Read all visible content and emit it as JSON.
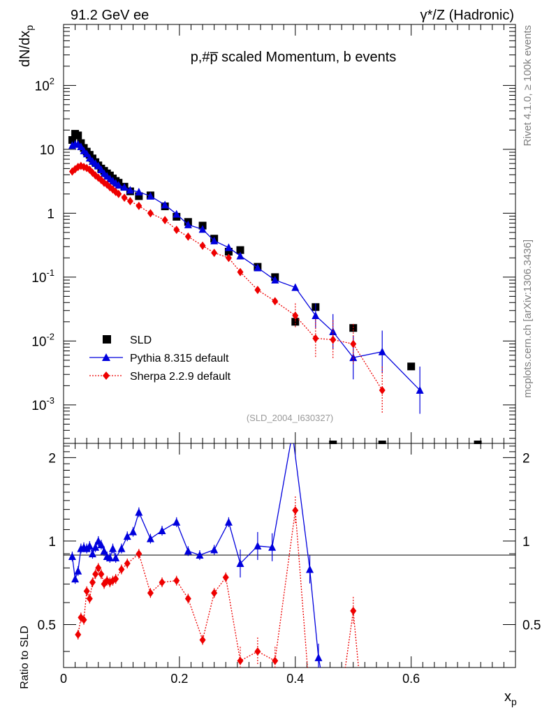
{
  "header": {
    "left": "91.2 GeV ee",
    "right": "γ*/Z (Hadronic)"
  },
  "side": {
    "rivet": "Rivet 4.1.0, ≥ 100k events",
    "mcplots": "mcplots.cern.ch [arXiv:1306.3436]"
  },
  "chart_data": {
    "type": "scatter",
    "title": "p,#p̅ scaled Momentum, b events",
    "watermark": "(SLD_2004_I630327)",
    "xlabel": "x_p",
    "ylabel": "dN/dx_p",
    "ratio_ylabel": "Ratio to SLD",
    "xlim": [
      0,
      0.78
    ],
    "ylim": [
      0.00025,
      900
    ],
    "ratio_ylim": [
      0.35,
      2.25
    ],
    "yscale": "log",
    "x_ticks": [
      0,
      0.2,
      0.4,
      0.6
    ],
    "x_tick_labels": [
      "0",
      "0.2",
      "0.4",
      "0.6"
    ],
    "y_tick_labels": [
      "10^{-3}",
      "10^{-2}",
      "10^{-1}",
      "1",
      "10",
      "10^{2}"
    ],
    "ratio_tick_labels": [
      "0.5",
      "1",
      "2"
    ],
    "legend": {
      "position": "bottom-left",
      "entries": [
        "SLD",
        "Pythia 8.315 default",
        "Sherpa 2.2.9 default"
      ]
    },
    "series": [
      {
        "name": "SLD",
        "color": "#000000",
        "marker": "square",
        "x": [
          0.015,
          0.02,
          0.025,
          0.03,
          0.035,
          0.04,
          0.045,
          0.05,
          0.055,
          0.06,
          0.065,
          0.07,
          0.075,
          0.08,
          0.085,
          0.09,
          0.095,
          0.105,
          0.115,
          0.13,
          0.15,
          0.175,
          0.195,
          0.215,
          0.24,
          0.26,
          0.285,
          0.305,
          0.335,
          0.365,
          0.4,
          0.435,
          0.465,
          0.5,
          0.55,
          0.6,
          0.715
        ],
        "y": [
          14,
          17.5,
          16.5,
          12.5,
          10.5,
          9.2,
          8.2,
          7.2,
          6.3,
          5.6,
          5.0,
          4.6,
          4.2,
          3.9,
          3.5,
          3.2,
          3.0,
          2.6,
          2.2,
          1.85,
          1.9,
          1.28,
          0.88,
          0.73,
          0.64,
          0.4,
          0.25,
          0.265,
          0.145,
          0.1,
          0.02,
          0.034,
          0.0002,
          0.016,
          0.0002,
          0.004,
          0.0002
        ]
      },
      {
        "name": "Pythia 8.315 default",
        "color": "#0000dd",
        "marker": "triangle",
        "line": "solid",
        "x": [
          0.015,
          0.02,
          0.025,
          0.03,
          0.035,
          0.04,
          0.045,
          0.05,
          0.055,
          0.06,
          0.065,
          0.07,
          0.075,
          0.08,
          0.085,
          0.09,
          0.095,
          0.105,
          0.115,
          0.13,
          0.15,
          0.175,
          0.195,
          0.215,
          0.24,
          0.26,
          0.285,
          0.305,
          0.335,
          0.365,
          0.4,
          0.435,
          0.465,
          0.5,
          0.55,
          0.615
        ],
        "y": [
          11.5,
          12.0,
          12.0,
          11.0,
          9.5,
          8.5,
          7.3,
          6.5,
          6.0,
          5.5,
          4.8,
          4.2,
          3.8,
          3.45,
          3.2,
          2.95,
          2.75,
          2.55,
          2.3,
          2.15,
          1.85,
          1.35,
          0.97,
          0.66,
          0.56,
          0.37,
          0.29,
          0.215,
          0.14,
          0.09,
          0.069,
          0.025,
          0.014,
          0.0055,
          0.0068,
          0.0017
        ]
      },
      {
        "name": "Sherpa 2.2.9 default",
        "color": "#ee0000",
        "marker": "diamond",
        "line": "dotted",
        "x": [
          0.015,
          0.02,
          0.025,
          0.03,
          0.035,
          0.04,
          0.045,
          0.05,
          0.055,
          0.06,
          0.065,
          0.07,
          0.075,
          0.08,
          0.085,
          0.09,
          0.095,
          0.105,
          0.115,
          0.13,
          0.15,
          0.175,
          0.195,
          0.215,
          0.24,
          0.26,
          0.285,
          0.305,
          0.335,
          0.365,
          0.4,
          0.435,
          0.465,
          0.5,
          0.55
        ],
        "y": [
          4.5,
          4.9,
          5.3,
          5.5,
          5.3,
          5.1,
          4.8,
          4.3,
          3.9,
          3.6,
          3.3,
          3.0,
          2.8,
          2.55,
          2.35,
          2.15,
          2.0,
          1.75,
          1.55,
          1.3,
          1.0,
          0.78,
          0.55,
          0.43,
          0.31,
          0.24,
          0.2,
          0.12,
          0.063,
          0.042,
          0.025,
          0.011,
          0.0105,
          0.009,
          0.0017
        ]
      }
    ],
    "ratio_series": [
      {
        "name": "Pythia 8.315 default",
        "color": "#0000dd",
        "x": [
          0.015,
          0.02,
          0.025,
          0.03,
          0.035,
          0.04,
          0.045,
          0.05,
          0.055,
          0.06,
          0.065,
          0.07,
          0.075,
          0.08,
          0.085,
          0.09,
          0.1,
          0.11,
          0.12,
          0.13,
          0.15,
          0.17,
          0.195,
          0.215,
          0.235,
          0.26,
          0.285,
          0.305,
          0.335,
          0.36,
          0.395,
          0.425,
          0.44,
          0.465
        ],
        "y": [
          0.88,
          0.73,
          0.78,
          0.94,
          0.95,
          0.94,
          0.96,
          0.9,
          0.95,
          1.0,
          0.97,
          0.92,
          0.88,
          0.87,
          0.94,
          0.87,
          0.94,
          1.04,
          1.08,
          1.27,
          1.02,
          1.09,
          1.17,
          0.92,
          0.89,
          0.93,
          1.17,
          0.83,
          0.96,
          0.95,
          2.45,
          0.79,
          0.38,
          0.2
        ]
      },
      {
        "name": "Sherpa 2.2.9 default",
        "color": "#ee0000",
        "x": [
          0.025,
          0.03,
          0.035,
          0.04,
          0.045,
          0.05,
          0.055,
          0.06,
          0.065,
          0.07,
          0.075,
          0.08,
          0.085,
          0.09,
          0.1,
          0.11,
          0.13,
          0.15,
          0.17,
          0.195,
          0.215,
          0.24,
          0.26,
          0.28,
          0.305,
          0.335,
          0.365,
          0.4,
          0.43,
          0.47,
          0.5,
          0.52
        ],
        "y": [
          0.46,
          0.53,
          0.52,
          0.66,
          0.62,
          0.71,
          0.76,
          0.8,
          0.76,
          0.7,
          0.72,
          0.71,
          0.72,
          0.73,
          0.79,
          0.83,
          0.9,
          0.65,
          0.71,
          0.72,
          0.62,
          0.44,
          0.65,
          0.74,
          0.37,
          0.4,
          0.37,
          1.29,
          0.2,
          0.2,
          0.56,
          0.2
        ]
      }
    ]
  }
}
